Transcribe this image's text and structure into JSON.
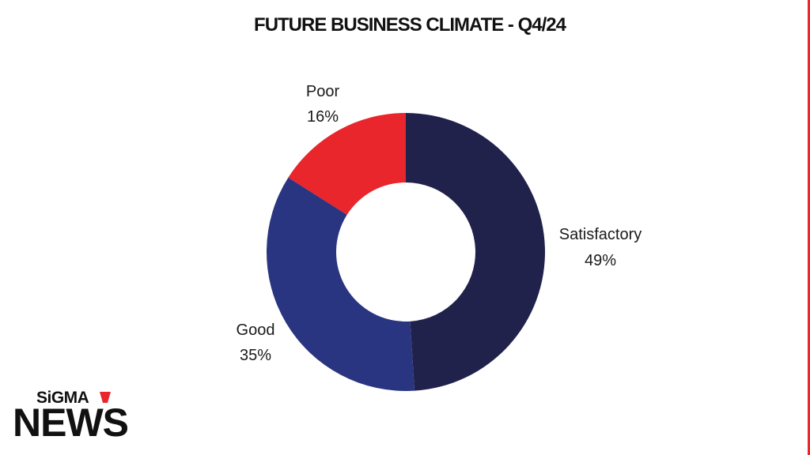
{
  "chart_data": {
    "type": "pie",
    "variant": "donut",
    "title": "FUTURE BUSINESS CLIMATE - Q4/24",
    "slices": [
      {
        "label": "Satisfactory",
        "value": 49,
        "value_label": "49%",
        "color": "#21224b"
      },
      {
        "label": "Good",
        "value": 35,
        "value_label": "35%",
        "color": "#293580"
      },
      {
        "label": "Poor",
        "value": 16,
        "value_label": "16%",
        "color": "#e8262c"
      }
    ],
    "legend": "none"
  },
  "branding": {
    "logo_top": "SiGMA",
    "logo_bottom": "NEWS",
    "accent_color": "#e8262c"
  }
}
